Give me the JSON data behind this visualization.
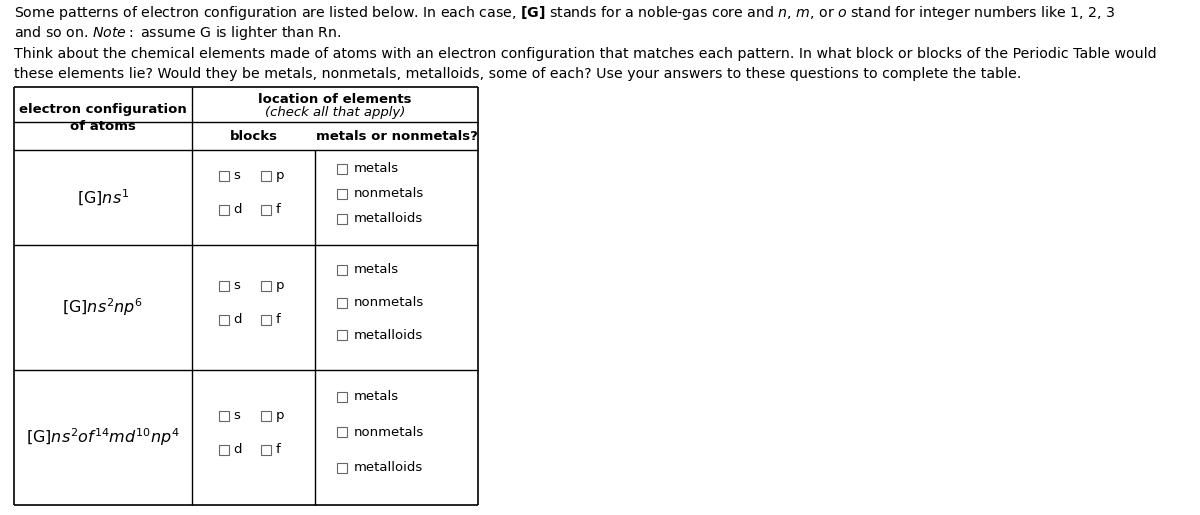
{
  "line1": "Some patterns of electron configuration are listed below. In each case, [G] stands for a noble-gas core and n, m, or o stand for integer numbers like 1, 2, 3",
  "line2": "and so on. Note: assume G is lighter than Rn.",
  "line3": "Think about the chemical elements made of atoms with an electron configuration that matches each pattern. In what block or blocks of the Periodic Table would",
  "line4": "these elements lie? Would they be metals, nonmetals, metalloids, some of each? Use your answers to these questions to complete the table.",
  "col1_header": "electron configuration\nof atoms",
  "col2_header_bold": "location of elements",
  "col2_header_italic": "(check all that apply)",
  "col2a_header": "blocks",
  "col2b_header": "metals or nonmetals?",
  "configs": [
    "[G]ns^{1}",
    "[G]ns^{2}np^{6}",
    "[G]ns^{2}of^{14}md^{10}np^{4}"
  ],
  "blocks_row1": [
    "s",
    "p"
  ],
  "blocks_row2": [
    "d",
    "f"
  ],
  "metals_labels": [
    "metals",
    "nonmetals",
    "metalloids"
  ],
  "bg_color": "#ffffff",
  "text_color": "#000000",
  "border_color": "#000000",
  "font_size_text": 10.2,
  "font_size_table": 9.5,
  "font_size_config": 11.5
}
